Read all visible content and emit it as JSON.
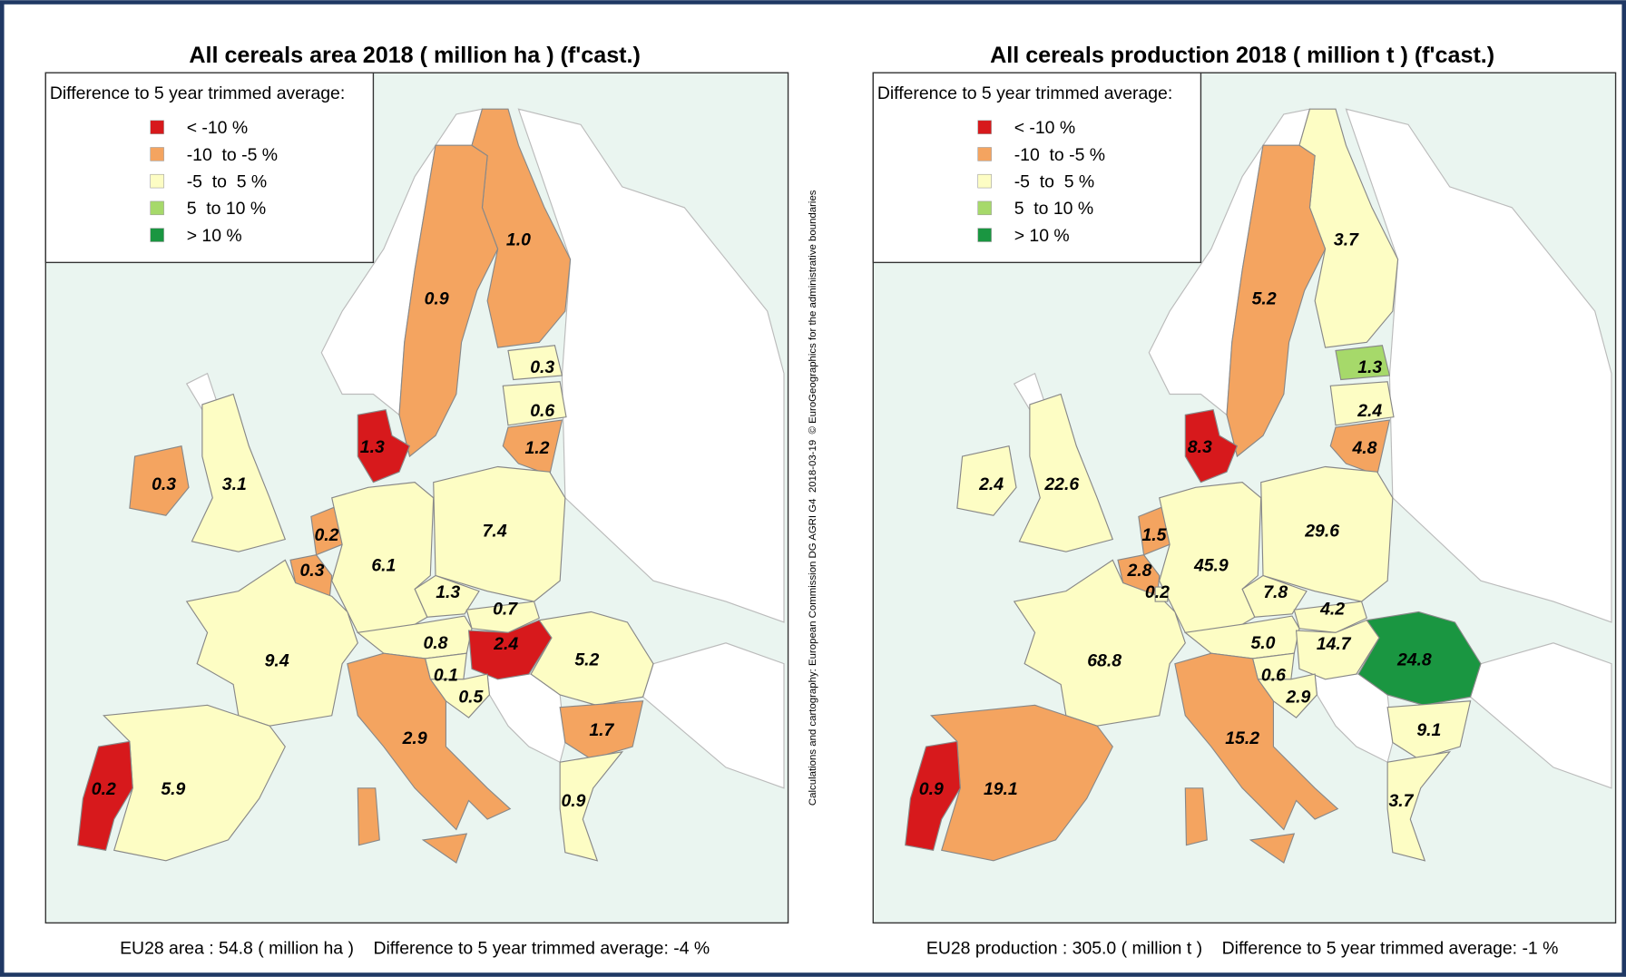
{
  "maps": [
    {
      "title": "All cereals area 2018 ( million ha ) (f'cast.)",
      "legend": {
        "title": "Difference to 5 year trimmed average:",
        "items": [
          {
            "label": "< -10 %",
            "color": "#d7191c"
          },
          {
            "label": "-10  to -5 %",
            "color": "#f4a460"
          },
          {
            "label": "-5  to  5 %",
            "color": "#fdfdc4"
          },
          {
            "label": "5  to 10 %",
            "color": "#a6d96a"
          },
          {
            "label": "> 10 %",
            "color": "#1a9641"
          }
        ]
      },
      "regions": [
        {
          "label": "1.0",
          "color": "#f4a460"
        },
        {
          "label": "0.9",
          "color": "#f4a460"
        },
        {
          "label": "0.3",
          "color": "#fdfdc4"
        },
        {
          "label": "0.6",
          "color": "#fdfdc4"
        },
        {
          "label": "1.2",
          "color": "#f4a460"
        },
        {
          "label": "1.3",
          "color": "#d7191c"
        },
        {
          "label": "0.3",
          "color": "#f4a460"
        },
        {
          "label": "3.1",
          "color": "#fdfdc4"
        },
        {
          "label": "0.2",
          "color": "#f4a460"
        },
        {
          "label": "0.3",
          "color": "#f4a460"
        },
        {
          "label": "6.1",
          "color": "#fdfdc4"
        },
        {
          "label": "7.4",
          "color": "#fdfdc4"
        },
        {
          "label": "1.3",
          "color": "#fdfdc4"
        },
        {
          "label": "0.7",
          "color": "#fdfdc4"
        },
        {
          "label": "0.8",
          "color": "#fdfdc4"
        },
        {
          "label": "2.4",
          "color": "#d7191c"
        },
        {
          "label": "0.1",
          "color": "#fdfdc4"
        },
        {
          "label": "0.5",
          "color": "#fdfdc4"
        },
        {
          "label": "5.2",
          "color": "#fdfdc4"
        },
        {
          "label": "1.7",
          "color": "#f4a460"
        },
        {
          "label": "9.4",
          "color": "#fdfdc4"
        },
        {
          "label": "2.9",
          "color": "#f4a460"
        },
        {
          "label": "5.9",
          "color": "#fdfdc4"
        },
        {
          "label": "0.2",
          "color": "#d7191c"
        },
        {
          "label": "0.9",
          "color": "#fdfdc4"
        }
      ],
      "footer": "EU28 area : 54.8 ( million ha )    Difference to 5 year trimmed average: -4 %"
    },
    {
      "title": "All cereals production 2018 ( million t ) (f'cast.)",
      "legend": {
        "title": "Difference to 5 year trimmed average:",
        "items": [
          {
            "label": "< -10 %",
            "color": "#d7191c"
          },
          {
            "label": "-10  to -5 %",
            "color": "#f4a460"
          },
          {
            "label": "-5  to  5 %",
            "color": "#fdfdc4"
          },
          {
            "label": "5  to 10 %",
            "color": "#a6d96a"
          },
          {
            "label": "> 10 %",
            "color": "#1a9641"
          }
        ]
      },
      "regions": [
        {
          "label": "3.7",
          "color": "#fdfdc4"
        },
        {
          "label": "5.2",
          "color": "#f4a460"
        },
        {
          "label": "1.3",
          "color": "#a6d96a"
        },
        {
          "label": "2.4",
          "color": "#fdfdc4"
        },
        {
          "label": "4.8",
          "color": "#f4a460"
        },
        {
          "label": "8.3",
          "color": "#d7191c"
        },
        {
          "label": "2.4",
          "color": "#fdfdc4"
        },
        {
          "label": "22.6",
          "color": "#fdfdc4"
        },
        {
          "label": "1.5",
          "color": "#f4a460"
        },
        {
          "label": "2.8",
          "color": "#f4a460"
        },
        {
          "label": "45.9",
          "color": "#fdfdc4"
        },
        {
          "label": "29.6",
          "color": "#fdfdc4"
        },
        {
          "label": "7.8",
          "color": "#fdfdc4"
        },
        {
          "label": "4.2",
          "color": "#fdfdc4"
        },
        {
          "label": "5.0",
          "color": "#fdfdc4"
        },
        {
          "label": "14.7",
          "color": "#fdfdc4"
        },
        {
          "label": "0.6",
          "color": "#fdfdc4"
        },
        {
          "label": "2.9",
          "color": "#fdfdc4"
        },
        {
          "label": "24.8",
          "color": "#1a9641"
        },
        {
          "label": "9.1",
          "color": "#fdfdc4"
        },
        {
          "label": "68.8",
          "color": "#fdfdc4"
        },
        {
          "label": "15.2",
          "color": "#f4a460"
        },
        {
          "label": "19.1",
          "color": "#f4a460"
        },
        {
          "label": "0.9",
          "color": "#d7191c"
        },
        {
          "label": "3.7",
          "color": "#fdfdc4"
        },
        {
          "label": "0.2",
          "color": "#fdfdc4"
        }
      ],
      "footer": "EU28 production : 305.0 ( million t )    Difference to 5 year trimmed average: -1 %"
    }
  ],
  "credit": "Calculations and cartography: European Commission DG AGRI G4  2018-03-19  © EuroGeographics for the administrative boundaries"
}
